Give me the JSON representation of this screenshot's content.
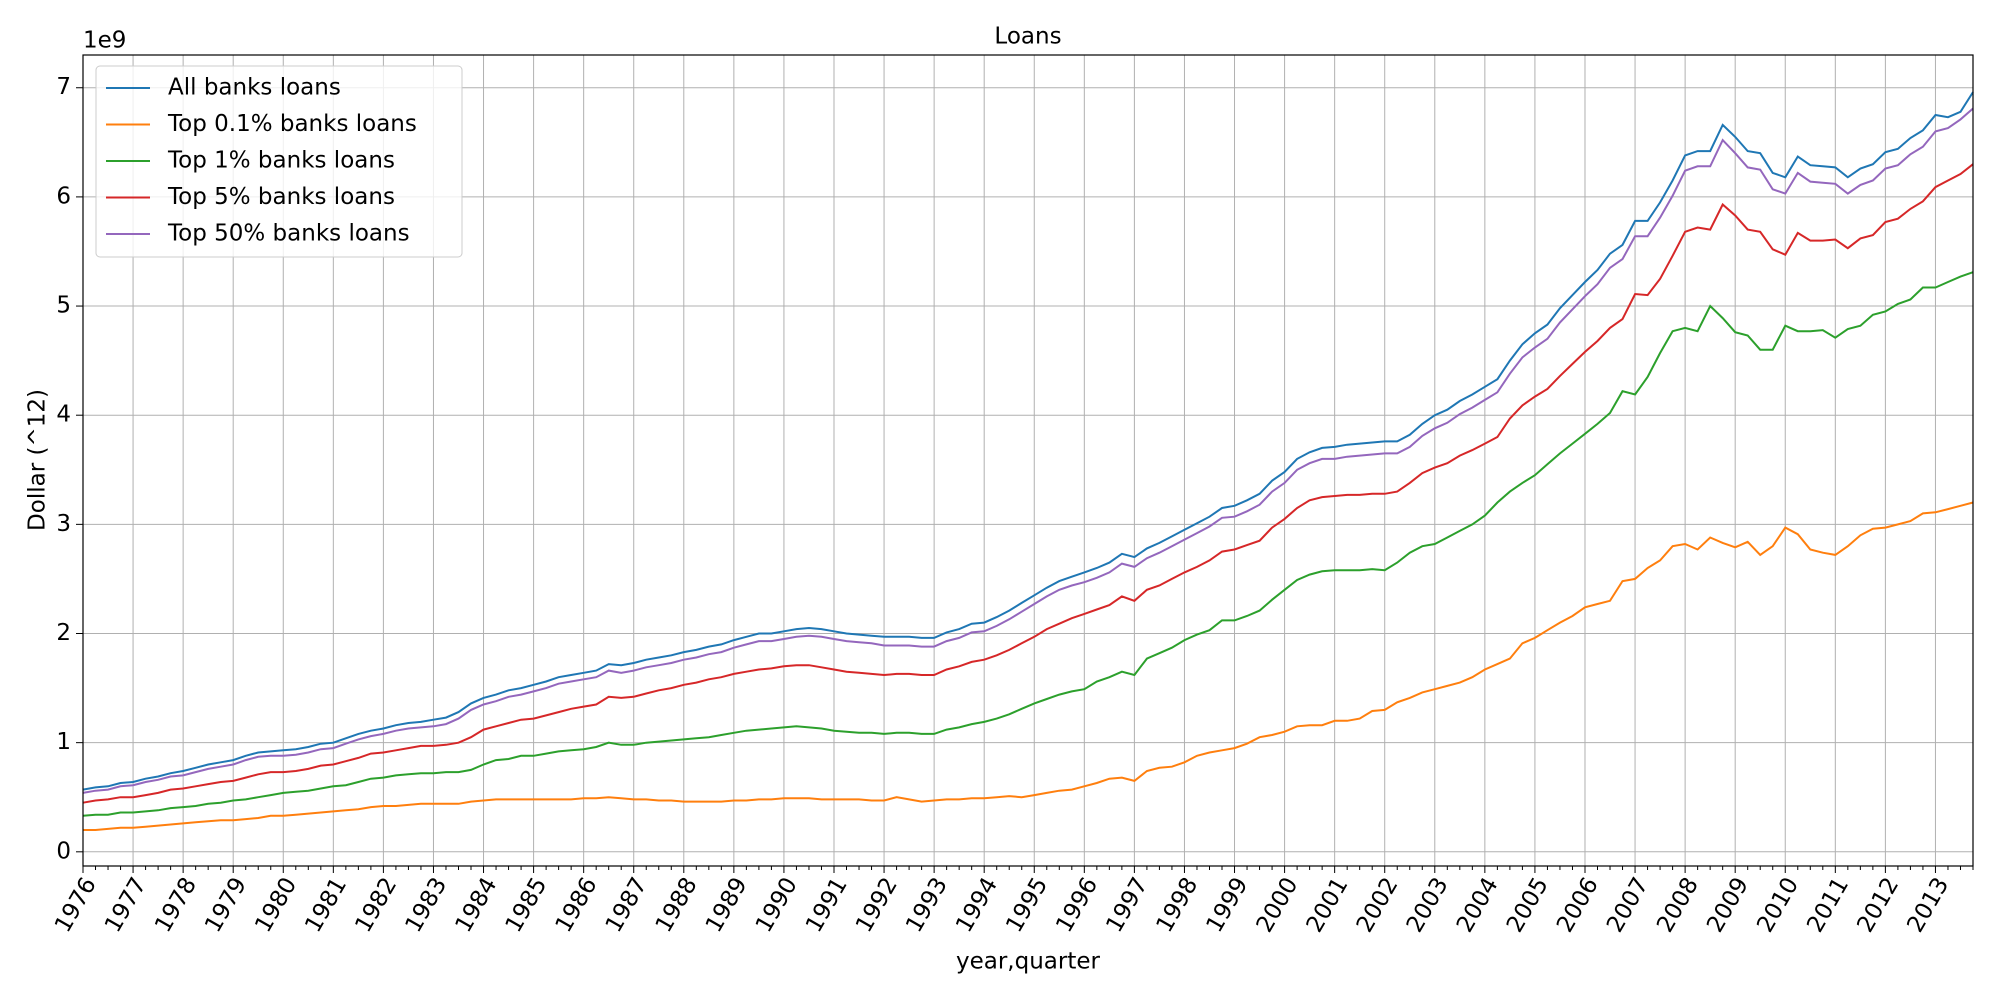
{
  "chart_data": {
    "type": "line",
    "title": "Loans",
    "xlabel": "year,quarter",
    "ylabel": "Dollar (^12)",
    "y_offset_label": "1e9",
    "categories": [
      "1976",
      null,
      null,
      null,
      "1977",
      null,
      null,
      null,
      "1978",
      null,
      null,
      null,
      "1979",
      null,
      null,
      null,
      "1980",
      null,
      null,
      null,
      "1981",
      null,
      null,
      null,
      "1982",
      null,
      null,
      null,
      "1983",
      null,
      null,
      null,
      "1984",
      null,
      null,
      null,
      "1985",
      null,
      null,
      null,
      "1986",
      null,
      null,
      null,
      "1987",
      null,
      null,
      null,
      "1988",
      null,
      null,
      null,
      "1989",
      null,
      null,
      null,
      "1990",
      null,
      null,
      null,
      "1991",
      null,
      null,
      null,
      "1992",
      null,
      null,
      null,
      "1993",
      null,
      null,
      null,
      "1994",
      null,
      null,
      null,
      "1995",
      null,
      null,
      null,
      "1996",
      null,
      null,
      null,
      "1997",
      null,
      null,
      null,
      "1998",
      null,
      null,
      null,
      "1999",
      null,
      null,
      null,
      "2000",
      null,
      null,
      null,
      "2001",
      null,
      null,
      null,
      "2002",
      null,
      null,
      null,
      "2003",
      null,
      null,
      null,
      "2004",
      null,
      null,
      null,
      "2005",
      null,
      null,
      null,
      "2006",
      null,
      null,
      null,
      "2007",
      null,
      null,
      null,
      "2008",
      null,
      null,
      null,
      "2009",
      null,
      null,
      null,
      "2010",
      null,
      null,
      null,
      "2011",
      null,
      null,
      null,
      "2012",
      null,
      null,
      null,
      "2013",
      null,
      null,
      null
    ],
    "series": [
      {
        "name": "All banks loans",
        "color": "#1f77b4",
        "values": [
          0.57,
          0.59,
          0.6,
          0.63,
          0.64,
          0.67,
          0.69,
          0.72,
          0.74,
          0.77,
          0.8,
          0.82,
          0.84,
          0.88,
          0.91,
          0.92,
          0.93,
          0.94,
          0.96,
          0.99,
          1.0,
          1.04,
          1.08,
          1.11,
          1.13,
          1.16,
          1.18,
          1.19,
          1.21,
          1.23,
          1.28,
          1.36,
          1.41,
          1.44,
          1.48,
          1.5,
          1.53,
          1.56,
          1.6,
          1.62,
          1.64,
          1.66,
          1.72,
          1.71,
          1.73,
          1.76,
          1.78,
          1.8,
          1.83,
          1.85,
          1.88,
          1.9,
          1.94,
          1.97,
          2.0,
          2.0,
          2.02,
          2.04,
          2.05,
          2.04,
          2.02,
          2.0,
          1.99,
          1.98,
          1.97,
          1.97,
          1.97,
          1.96,
          1.96,
          2.01,
          2.04,
          2.09,
          2.1,
          2.15,
          2.21,
          2.28,
          2.35,
          2.42,
          2.48,
          2.52,
          2.56,
          2.6,
          2.65,
          2.73,
          2.7,
          2.78,
          2.83,
          2.89,
          2.95,
          3.01,
          3.07,
          3.15,
          3.17,
          3.22,
          3.28,
          3.4,
          3.48,
          3.6,
          3.66,
          3.7,
          3.71,
          3.73,
          3.74,
          3.75,
          3.76,
          3.76,
          3.82,
          3.92,
          4.0,
          4.05,
          4.13,
          4.19,
          4.26,
          4.33,
          4.5,
          4.65,
          4.75,
          4.83,
          4.98,
          5.1,
          5.22,
          5.33,
          5.48,
          5.56,
          5.78,
          5.78,
          5.95,
          6.15,
          6.38,
          6.42,
          6.42,
          6.66,
          6.55,
          6.42,
          6.4,
          6.22,
          6.18,
          6.37,
          6.29,
          6.28,
          6.27,
          6.18,
          6.26,
          6.3,
          6.41,
          6.44,
          6.54,
          6.61,
          6.75,
          6.73,
          6.78,
          6.96
        ]
      },
      {
        "name": "Top 0.1% banks loans",
        "color": "#ff7f0e",
        "values": [
          0.2,
          0.2,
          0.21,
          0.22,
          0.22,
          0.23,
          0.24,
          0.25,
          0.26,
          0.27,
          0.28,
          0.29,
          0.29,
          0.3,
          0.31,
          0.33,
          0.33,
          0.34,
          0.35,
          0.36,
          0.37,
          0.38,
          0.39,
          0.41,
          0.42,
          0.42,
          0.43,
          0.44,
          0.44,
          0.44,
          0.44,
          0.46,
          0.47,
          0.48,
          0.48,
          0.48,
          0.48,
          0.48,
          0.48,
          0.48,
          0.49,
          0.49,
          0.5,
          0.49,
          0.48,
          0.48,
          0.47,
          0.47,
          0.46,
          0.46,
          0.46,
          0.46,
          0.47,
          0.47,
          0.48,
          0.48,
          0.49,
          0.49,
          0.49,
          0.48,
          0.48,
          0.48,
          0.48,
          0.47,
          0.47,
          0.5,
          0.48,
          0.46,
          0.47,
          0.48,
          0.48,
          0.49,
          0.49,
          0.5,
          0.51,
          0.5,
          0.52,
          0.54,
          0.56,
          0.57,
          0.6,
          0.63,
          0.67,
          0.68,
          0.65,
          0.74,
          0.77,
          0.78,
          0.82,
          0.88,
          0.91,
          0.93,
          0.95,
          0.99,
          1.05,
          1.07,
          1.1,
          1.15,
          1.16,
          1.16,
          1.2,
          1.2,
          1.22,
          1.29,
          1.3,
          1.37,
          1.41,
          1.46,
          1.49,
          1.52,
          1.55,
          1.6,
          1.67,
          1.72,
          1.77,
          1.91,
          1.96,
          2.03,
          2.1,
          2.16,
          2.24,
          2.27,
          2.3,
          2.48,
          2.5,
          2.6,
          2.67,
          2.8,
          2.82,
          2.77,
          2.88,
          2.83,
          2.79,
          2.84,
          2.72,
          2.8,
          2.97,
          2.91,
          2.77,
          2.74,
          2.72,
          2.8,
          2.9,
          2.96,
          2.97,
          3.0,
          3.03,
          3.1,
          3.11,
          3.14,
          3.17,
          3.2
        ]
      },
      {
        "name": "Top 1% banks loans",
        "color": "#2ca02c",
        "values": [
          0.33,
          0.34,
          0.34,
          0.36,
          0.36,
          0.37,
          0.38,
          0.4,
          0.41,
          0.42,
          0.44,
          0.45,
          0.47,
          0.48,
          0.5,
          0.52,
          0.54,
          0.55,
          0.56,
          0.58,
          0.6,
          0.61,
          0.64,
          0.67,
          0.68,
          0.7,
          0.71,
          0.72,
          0.72,
          0.73,
          0.73,
          0.75,
          0.8,
          0.84,
          0.85,
          0.88,
          0.88,
          0.9,
          0.92,
          0.93,
          0.94,
          0.96,
          1.0,
          0.98,
          0.98,
          1.0,
          1.01,
          1.02,
          1.03,
          1.04,
          1.05,
          1.07,
          1.09,
          1.11,
          1.12,
          1.13,
          1.14,
          1.15,
          1.14,
          1.13,
          1.11,
          1.1,
          1.09,
          1.09,
          1.08,
          1.09,
          1.09,
          1.08,
          1.08,
          1.12,
          1.14,
          1.17,
          1.19,
          1.22,
          1.26,
          1.31,
          1.36,
          1.4,
          1.44,
          1.47,
          1.49,
          1.56,
          1.6,
          1.65,
          1.62,
          1.77,
          1.82,
          1.87,
          1.94,
          1.99,
          2.03,
          2.12,
          2.12,
          2.16,
          2.21,
          2.31,
          2.4,
          2.49,
          2.54,
          2.57,
          2.58,
          2.58,
          2.58,
          2.59,
          2.58,
          2.65,
          2.74,
          2.8,
          2.82,
          2.88,
          2.94,
          3.0,
          3.08,
          3.2,
          3.3,
          3.38,
          3.45,
          3.55,
          3.65,
          3.74,
          3.83,
          3.92,
          4.02,
          4.22,
          4.19,
          4.35,
          4.57,
          4.77,
          4.8,
          4.77,
          5.0,
          4.89,
          4.76,
          4.73,
          4.6,
          4.6,
          4.82,
          4.77,
          4.77,
          4.78,
          4.71,
          4.79,
          4.82,
          4.92,
          4.95,
          5.02,
          5.06,
          5.17,
          5.17,
          5.22,
          5.27,
          5.31
        ]
      },
      {
        "name": "Top 5% banks loans",
        "color": "#d62728",
        "values": [
          0.45,
          0.47,
          0.48,
          0.5,
          0.5,
          0.52,
          0.54,
          0.57,
          0.58,
          0.6,
          0.62,
          0.64,
          0.65,
          0.68,
          0.71,
          0.73,
          0.73,
          0.74,
          0.76,
          0.79,
          0.8,
          0.83,
          0.86,
          0.9,
          0.91,
          0.93,
          0.95,
          0.97,
          0.97,
          0.98,
          1.0,
          1.05,
          1.12,
          1.15,
          1.18,
          1.21,
          1.22,
          1.25,
          1.28,
          1.31,
          1.33,
          1.35,
          1.42,
          1.41,
          1.42,
          1.45,
          1.48,
          1.5,
          1.53,
          1.55,
          1.58,
          1.6,
          1.63,
          1.65,
          1.67,
          1.68,
          1.7,
          1.71,
          1.71,
          1.69,
          1.67,
          1.65,
          1.64,
          1.63,
          1.62,
          1.63,
          1.63,
          1.62,
          1.62,
          1.67,
          1.7,
          1.74,
          1.76,
          1.8,
          1.85,
          1.91,
          1.97,
          2.04,
          2.09,
          2.14,
          2.18,
          2.22,
          2.26,
          2.34,
          2.3,
          2.4,
          2.44,
          2.5,
          2.56,
          2.61,
          2.67,
          2.75,
          2.77,
          2.81,
          2.85,
          2.97,
          3.05,
          3.15,
          3.22,
          3.25,
          3.26,
          3.27,
          3.27,
          3.28,
          3.28,
          3.3,
          3.38,
          3.47,
          3.52,
          3.56,
          3.63,
          3.68,
          3.74,
          3.8,
          3.97,
          4.09,
          4.17,
          4.24,
          4.36,
          4.47,
          4.58,
          4.68,
          4.8,
          4.88,
          5.11,
          5.1,
          5.25,
          5.46,
          5.68,
          5.72,
          5.7,
          5.93,
          5.83,
          5.7,
          5.68,
          5.52,
          5.47,
          5.67,
          5.6,
          5.6,
          5.61,
          5.53,
          5.62,
          5.65,
          5.77,
          5.8,
          5.89,
          5.96,
          6.09,
          6.15,
          6.21,
          6.3
        ]
      },
      {
        "name": "Top 50% banks loans",
        "color": "#9467bd",
        "values": [
          0.54,
          0.56,
          0.57,
          0.6,
          0.61,
          0.64,
          0.66,
          0.69,
          0.7,
          0.73,
          0.76,
          0.78,
          0.8,
          0.84,
          0.87,
          0.88,
          0.88,
          0.89,
          0.91,
          0.94,
          0.95,
          0.99,
          1.03,
          1.06,
          1.08,
          1.11,
          1.13,
          1.14,
          1.15,
          1.17,
          1.22,
          1.3,
          1.35,
          1.38,
          1.42,
          1.44,
          1.47,
          1.5,
          1.54,
          1.56,
          1.58,
          1.6,
          1.66,
          1.64,
          1.66,
          1.69,
          1.71,
          1.73,
          1.76,
          1.78,
          1.81,
          1.83,
          1.87,
          1.9,
          1.93,
          1.93,
          1.95,
          1.97,
          1.98,
          1.97,
          1.95,
          1.93,
          1.92,
          1.91,
          1.89,
          1.89,
          1.89,
          1.88,
          1.88,
          1.93,
          1.96,
          2.01,
          2.02,
          2.07,
          2.13,
          2.2,
          2.27,
          2.34,
          2.4,
          2.44,
          2.47,
          2.51,
          2.56,
          2.64,
          2.61,
          2.69,
          2.74,
          2.8,
          2.86,
          2.92,
          2.98,
          3.06,
          3.07,
          3.12,
          3.18,
          3.3,
          3.38,
          3.5,
          3.56,
          3.6,
          3.6,
          3.62,
          3.63,
          3.64,
          3.65,
          3.65,
          3.71,
          3.81,
          3.88,
          3.93,
          4.01,
          4.07,
          4.14,
          4.21,
          4.38,
          4.53,
          4.62,
          4.7,
          4.85,
          4.97,
          5.09,
          5.2,
          5.35,
          5.43,
          5.64,
          5.64,
          5.81,
          6.01,
          6.24,
          6.28,
          6.28,
          6.52,
          6.4,
          6.27,
          6.25,
          6.07,
          6.03,
          6.22,
          6.14,
          6.13,
          6.12,
          6.03,
          6.11,
          6.15,
          6.26,
          6.29,
          6.39,
          6.46,
          6.6,
          6.63,
          6.71,
          6.81
        ]
      }
    ],
    "ylim": [
      -0.13,
      7.3
    ],
    "yticks": [
      0,
      1,
      2,
      3,
      4,
      5,
      6,
      7
    ],
    "grid": true,
    "legend": "upper left"
  }
}
